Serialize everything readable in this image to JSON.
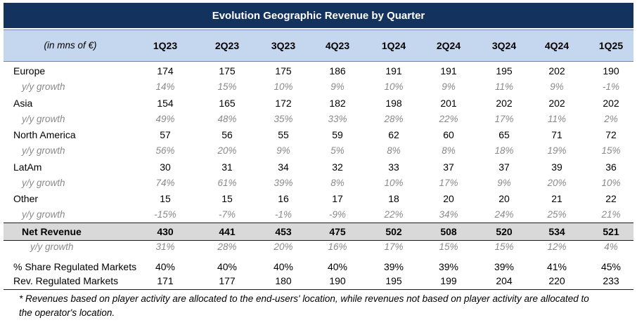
{
  "title": "Evolution Geographic Revenue by Quarter",
  "unit_label": "(in mns of €)",
  "quarters": [
    "1Q23",
    "2Q23",
    "3Q23",
    "4Q23",
    "1Q24",
    "2Q24",
    "3Q24",
    "4Q24",
    "1Q25"
  ],
  "growth_label": "y/y growth",
  "regions": [
    {
      "name": "Europe",
      "values": [
        "174",
        "175",
        "175",
        "186",
        "191",
        "191",
        "195",
        "202",
        "190"
      ],
      "growth": [
        "14%",
        "15%",
        "10%",
        "9%",
        "10%",
        "9%",
        "11%",
        "9%",
        "-1%"
      ]
    },
    {
      "name": "Asia",
      "values": [
        "154",
        "165",
        "172",
        "182",
        "198",
        "201",
        "202",
        "202",
        "202"
      ],
      "growth": [
        "49%",
        "48%",
        "35%",
        "33%",
        "28%",
        "22%",
        "17%",
        "11%",
        "2%"
      ]
    },
    {
      "name": "North America",
      "values": [
        "57",
        "56",
        "55",
        "59",
        "62",
        "60",
        "65",
        "71",
        "72"
      ],
      "growth": [
        "56%",
        "20%",
        "9%",
        "5%",
        "8%",
        "8%",
        "18%",
        "19%",
        "15%"
      ]
    },
    {
      "name": "LatAm",
      "values": [
        "30",
        "31",
        "34",
        "32",
        "33",
        "37",
        "37",
        "39",
        "36"
      ],
      "growth": [
        "74%",
        "61%",
        "39%",
        "8%",
        "10%",
        "17%",
        "9%",
        "20%",
        "10%"
      ]
    },
    {
      "name": "Other",
      "values": [
        "15",
        "15",
        "16",
        "17",
        "18",
        "20",
        "20",
        "21",
        "22"
      ],
      "growth": [
        "-15%",
        "-7%",
        "-1%",
        "-9%",
        "22%",
        "34%",
        "24%",
        "25%",
        "21%"
      ]
    }
  ],
  "net_revenue": {
    "name": "Net Revenue",
    "values": [
      "430",
      "441",
      "453",
      "475",
      "502",
      "508",
      "520",
      "534",
      "521"
    ],
    "growth": [
      "31%",
      "28%",
      "20%",
      "16%",
      "17%",
      "15%",
      "15%",
      "12%",
      "4%"
    ]
  },
  "share_regulated": {
    "name": "% Share Regulated Markets",
    "values": [
      "40%",
      "40%",
      "40%",
      "40%",
      "39%",
      "39%",
      "39%",
      "41%",
      "45%"
    ]
  },
  "rev_regulated": {
    "name": "Rev. Regulated Markets",
    "values": [
      "171",
      "177",
      "180",
      "190",
      "195",
      "199",
      "204",
      "220",
      "233"
    ]
  },
  "footnote": "* Revenues based on player activity are allocated to the end-users' location, while revenues not based on player activity are allocated to the operator's location."
}
